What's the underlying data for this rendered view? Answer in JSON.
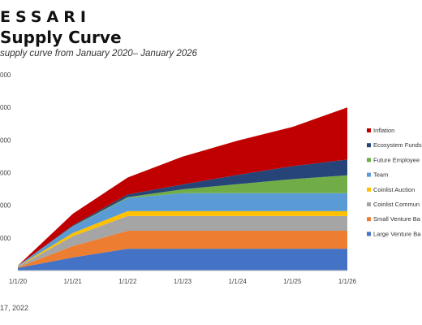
{
  "header": {
    "brand": "ESSARI",
    "title": "Supply Curve",
    "subtitle": "supply curve from January 2020– January 2026"
  },
  "footer": {
    "text": "17, 2022"
  },
  "chart_data": {
    "type": "area",
    "stacked": true,
    "x": [
      "1/1/20",
      "1/1/21",
      "1/1/22",
      "1/1/23",
      "1/1/24",
      "1/1/25",
      "1/1/26"
    ],
    "ylim": [
      0,
      6
    ],
    "y_ticks_visible_text": [
      "000",
      "000",
      "000",
      "000",
      "000",
      "000"
    ],
    "grid": false,
    "legend_position": "right",
    "series": [
      {
        "name": "Large Venture Ba",
        "color": "#4472C4",
        "values": [
          0.08,
          0.4,
          0.67,
          0.67,
          0.67,
          0.67,
          0.67
        ]
      },
      {
        "name": "Small Venture Ba",
        "color": "#ED7D31",
        "values": [
          0.02,
          0.35,
          0.55,
          0.55,
          0.55,
          0.55,
          0.55
        ]
      },
      {
        "name": "Coinlist Commun",
        "color": "#A5A5A5",
        "values": [
          0.02,
          0.3,
          0.45,
          0.45,
          0.45,
          0.45,
          0.45
        ]
      },
      {
        "name": "Coinlist Auction",
        "color": "#FFC000",
        "values": [
          0.01,
          0.1,
          0.15,
          0.15,
          0.15,
          0.15,
          0.15
        ]
      },
      {
        "name": "Team",
        "color": "#5B9BD5",
        "values": [
          0.02,
          0.2,
          0.4,
          0.55,
          0.55,
          0.55,
          0.55
        ]
      },
      {
        "name": "Future Employee",
        "color": "#70AD47",
        "values": [
          0.0,
          0.01,
          0.03,
          0.12,
          0.28,
          0.43,
          0.55
        ]
      },
      {
        "name": "Ecosystem Funds",
        "color": "#264478",
        "values": [
          0.0,
          0.03,
          0.08,
          0.15,
          0.28,
          0.4,
          0.48
        ]
      },
      {
        "name": "Inflation",
        "color": "#C00000",
        "values": [
          0.0,
          0.35,
          0.52,
          0.85,
          1.05,
          1.2,
          1.6
        ]
      }
    ]
  }
}
